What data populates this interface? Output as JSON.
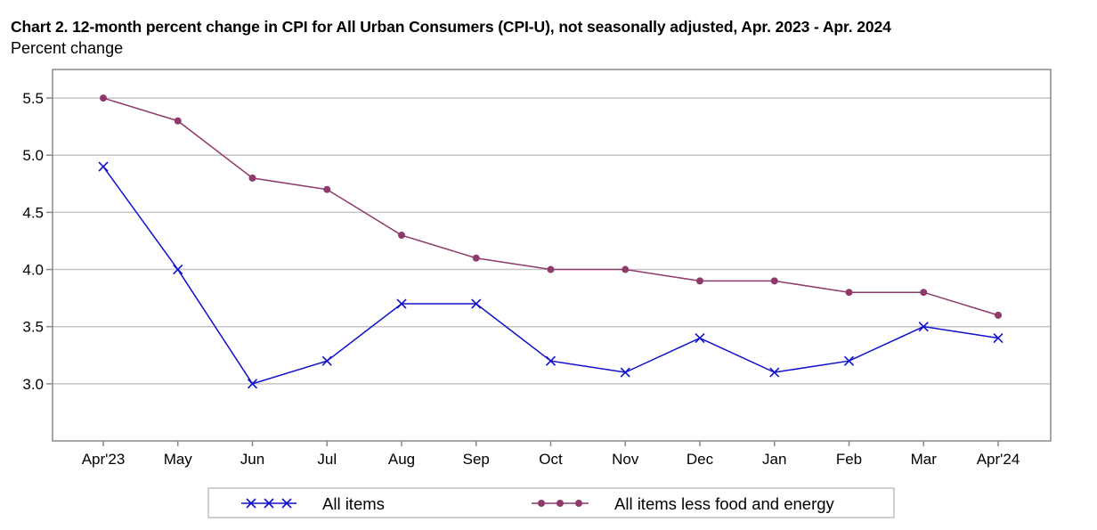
{
  "title": "Chart 2. 12-month percent change in CPI for All Urban Consumers (CPI-U), not seasonally adjusted, Apr. 2023 - Apr. 2024",
  "subtitle": "Percent change",
  "colors": {
    "all_items": "#1010cc",
    "core": "#8e3a6b",
    "grid": "#c4c4c4",
    "frame": "#8a8a8a"
  },
  "chart_data": {
    "type": "line",
    "title": "Chart 2. 12-month percent change in CPI for All Urban Consumers (CPI-U), not seasonally adjusted, Apr. 2023 - Apr. 2024",
    "ylabel": "Percent change",
    "xlabel": "",
    "categories": [
      "Apr'23",
      "May",
      "Jun",
      "Jul",
      "Aug",
      "Sep",
      "Oct",
      "Nov",
      "Dec",
      "Jan",
      "Feb",
      "Mar",
      "Apr'24"
    ],
    "ylim": [
      2.5,
      5.75
    ],
    "yticks": [
      "3.0",
      "3.5",
      "4.0",
      "4.5",
      "5.0",
      "5.5"
    ],
    "grid": true,
    "legend": "bottom-center",
    "series": [
      {
        "name": "All items",
        "marker": "x",
        "color": "#1010cc",
        "values": [
          4.9,
          4.0,
          3.0,
          3.2,
          3.7,
          3.7,
          3.2,
          3.1,
          3.4,
          3.1,
          3.2,
          3.5,
          3.4
        ]
      },
      {
        "name": "All items less food and energy",
        "marker": "circle",
        "color": "#8e3a6b",
        "values": [
          5.5,
          5.3,
          4.8,
          4.7,
          4.3,
          4.1,
          4.0,
          4.0,
          3.9,
          3.9,
          3.8,
          3.8,
          3.6
        ]
      }
    ]
  }
}
